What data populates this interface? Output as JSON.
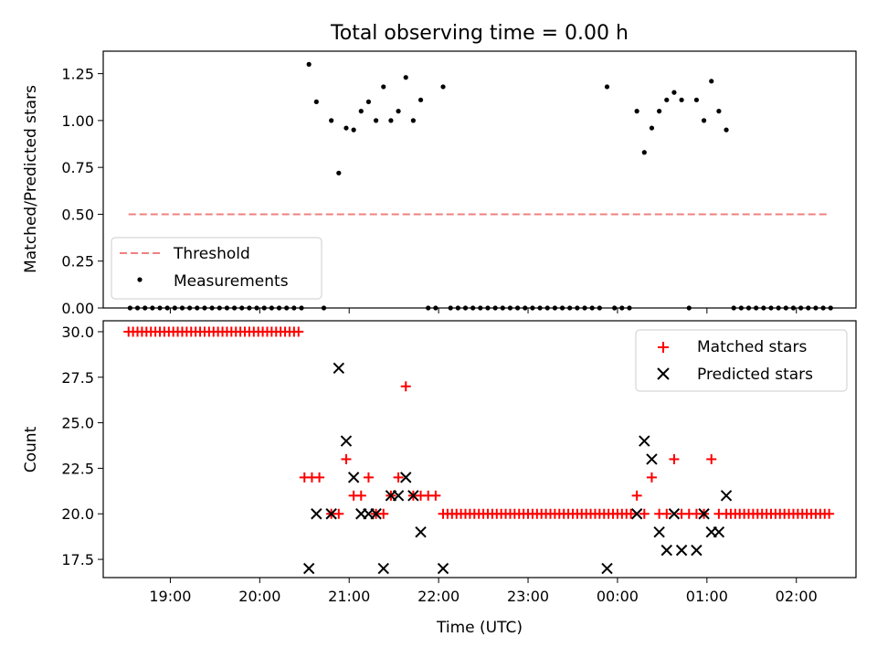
{
  "figure_title": "Total observing time = 0.00 h",
  "xlabel": "Time (UTC)",
  "colors": {
    "threshold": "#f08080",
    "matched": "#ff0000",
    "predicted": "#000000",
    "measurement": "#000000"
  },
  "chart_data": [
    {
      "type": "scatter",
      "title": "Total observing time = 0.00 h",
      "xlabel": "",
      "ylabel": "Matched/Predicted stars",
      "xlim": [
        "18:15",
        "02:40"
      ],
      "ylim": [
        0,
        1.37
      ],
      "yticks": [
        "0.00",
        "0.25",
        "0.50",
        "0.75",
        "1.00",
        "1.25"
      ],
      "grid": false,
      "legend_placement": "lower-left",
      "series": [
        {
          "name": "Threshold",
          "style": "dashed-line",
          "x": [
            "18:32",
            "02:22"
          ],
          "y": [
            0.5,
            0.5
          ]
        },
        {
          "name": "Measurements",
          "style": "dot",
          "points": [
            [
              "18:33",
              0
            ],
            [
              "18:38",
              0
            ],
            [
              "18:43",
              0
            ],
            [
              "18:48",
              0
            ],
            [
              "18:53",
              0
            ],
            [
              "18:58",
              0
            ],
            [
              "19:03",
              0
            ],
            [
              "19:08",
              0
            ],
            [
              "19:13",
              0
            ],
            [
              "19:18",
              0
            ],
            [
              "19:23",
              0
            ],
            [
              "19:28",
              0
            ],
            [
              "19:33",
              0
            ],
            [
              "19:38",
              0
            ],
            [
              "19:43",
              0
            ],
            [
              "19:48",
              0
            ],
            [
              "19:53",
              0
            ],
            [
              "19:58",
              0
            ],
            [
              "20:03",
              0
            ],
            [
              "20:08",
              0
            ],
            [
              "20:13",
              0
            ],
            [
              "20:18",
              0
            ],
            [
              "20:23",
              0
            ],
            [
              "20:28",
              0
            ],
            [
              "20:33",
              1.3
            ],
            [
              "20:38",
              1.1
            ],
            [
              "20:43",
              0
            ],
            [
              "20:48",
              1.0
            ],
            [
              "20:53",
              0.72
            ],
            [
              "20:58",
              0.96
            ],
            [
              "21:03",
              0.95
            ],
            [
              "21:08",
              1.05
            ],
            [
              "21:13",
              1.1
            ],
            [
              "21:18",
              1.0
            ],
            [
              "21:23",
              1.18
            ],
            [
              "21:28",
              1.0
            ],
            [
              "21:33",
              1.05
            ],
            [
              "21:38",
              1.23
            ],
            [
              "21:43",
              1.0
            ],
            [
              "21:48",
              1.11
            ],
            [
              "21:53",
              0
            ],
            [
              "21:58",
              0
            ],
            [
              "22:03",
              1.18
            ],
            [
              "22:08",
              0
            ],
            [
              "22:13",
              0
            ],
            [
              "22:18",
              0
            ],
            [
              "22:23",
              0
            ],
            [
              "22:28",
              0
            ],
            [
              "22:33",
              0
            ],
            [
              "22:38",
              0
            ],
            [
              "22:43",
              0
            ],
            [
              "22:48",
              0
            ],
            [
              "22:53",
              0
            ],
            [
              "22:58",
              0
            ],
            [
              "23:03",
              0
            ],
            [
              "23:08",
              0
            ],
            [
              "23:13",
              0
            ],
            [
              "23:18",
              0
            ],
            [
              "23:23",
              0
            ],
            [
              "23:28",
              0
            ],
            [
              "23:33",
              0
            ],
            [
              "23:38",
              0
            ],
            [
              "23:43",
              0
            ],
            [
              "23:48",
              0
            ],
            [
              "23:53",
              1.18
            ],
            [
              "23:58",
              0
            ],
            [
              "00:03",
              0
            ],
            [
              "00:08",
              0
            ],
            [
              "00:13",
              1.05
            ],
            [
              "00:18",
              0.83
            ],
            [
              "00:23",
              0.96
            ],
            [
              "00:28",
              1.05
            ],
            [
              "00:33",
              1.11
            ],
            [
              "00:38",
              1.15
            ],
            [
              "00:43",
              1.11
            ],
            [
              "00:48",
              0
            ],
            [
              "00:53",
              1.11
            ],
            [
              "00:58",
              1.0
            ],
            [
              "01:03",
              1.21
            ],
            [
              "01:08",
              1.05
            ],
            [
              "01:13",
              0.95
            ],
            [
              "01:18",
              0
            ],
            [
              "01:23",
              0
            ],
            [
              "01:28",
              0
            ],
            [
              "01:33",
              0
            ],
            [
              "01:38",
              0
            ],
            [
              "01:43",
              0
            ],
            [
              "01:48",
              0
            ],
            [
              "01:53",
              0
            ],
            [
              "01:58",
              0
            ],
            [
              "02:03",
              0
            ],
            [
              "02:08",
              0
            ],
            [
              "02:13",
              0
            ],
            [
              "02:18",
              0
            ],
            [
              "02:23",
              0
            ]
          ]
        }
      ]
    },
    {
      "type": "scatter",
      "title": "",
      "xlabel": "Time (UTC)",
      "ylabel": "Count",
      "xlim": [
        "18:15",
        "02:40"
      ],
      "ylim": [
        16.5,
        30.6
      ],
      "yticks": [
        "17.5",
        "20.0",
        "22.5",
        "25.0",
        "27.5",
        "30.0"
      ],
      "xticks": [
        "19:00",
        "20:00",
        "21:00",
        "22:00",
        "23:00",
        "00:00",
        "01:00",
        "02:00"
      ],
      "grid": false,
      "legend_placement": "upper-right",
      "series": [
        {
          "name": "Matched stars",
          "marker": "+",
          "points": [
            [
              "18:32",
              30
            ],
            [
              "18:35",
              30
            ],
            [
              "18:38",
              30
            ],
            [
              "18:41",
              30
            ],
            [
              "18:44",
              30
            ],
            [
              "18:47",
              30
            ],
            [
              "18:50",
              30
            ],
            [
              "18:53",
              30
            ],
            [
              "18:56",
              30
            ],
            [
              "18:59",
              30
            ],
            [
              "19:02",
              30
            ],
            [
              "19:05",
              30
            ],
            [
              "19:08",
              30
            ],
            [
              "19:11",
              30
            ],
            [
              "19:14",
              30
            ],
            [
              "19:17",
              30
            ],
            [
              "19:20",
              30
            ],
            [
              "19:23",
              30
            ],
            [
              "19:26",
              30
            ],
            [
              "19:29",
              30
            ],
            [
              "19:32",
              30
            ],
            [
              "19:35",
              30
            ],
            [
              "19:38",
              30
            ],
            [
              "19:41",
              30
            ],
            [
              "19:44",
              30
            ],
            [
              "19:47",
              30
            ],
            [
              "19:50",
              30
            ],
            [
              "19:53",
              30
            ],
            [
              "19:56",
              30
            ],
            [
              "19:59",
              30
            ],
            [
              "20:02",
              30
            ],
            [
              "20:05",
              30
            ],
            [
              "20:08",
              30
            ],
            [
              "20:11",
              30
            ],
            [
              "20:14",
              30
            ],
            [
              "20:17",
              30
            ],
            [
              "20:20",
              30
            ],
            [
              "20:23",
              30
            ],
            [
              "20:26",
              30
            ],
            [
              "20:30",
              22
            ],
            [
              "20:35",
              22
            ],
            [
              "20:40",
              22
            ],
            [
              "20:48",
              20
            ],
            [
              "20:53",
              20
            ],
            [
              "20:58",
              23
            ],
            [
              "21:03",
              21
            ],
            [
              "21:08",
              21
            ],
            [
              "21:13",
              22
            ],
            [
              "21:18",
              20
            ],
            [
              "21:23",
              20
            ],
            [
              "21:28",
              21
            ],
            [
              "21:33",
              22
            ],
            [
              "21:38",
              27
            ],
            [
              "21:43",
              21
            ],
            [
              "21:48",
              21
            ],
            [
              "21:53",
              21
            ],
            [
              "21:58",
              21
            ],
            [
              "22:03",
              20
            ],
            [
              "22:06",
              20
            ],
            [
              "22:09",
              20
            ],
            [
              "22:12",
              20
            ],
            [
              "22:15",
              20
            ],
            [
              "22:18",
              20
            ],
            [
              "22:21",
              20
            ],
            [
              "22:24",
              20
            ],
            [
              "22:27",
              20
            ],
            [
              "22:30",
              20
            ],
            [
              "22:33",
              20
            ],
            [
              "22:36",
              20
            ],
            [
              "22:39",
              20
            ],
            [
              "22:42",
              20
            ],
            [
              "22:45",
              20
            ],
            [
              "22:48",
              20
            ],
            [
              "22:51",
              20
            ],
            [
              "22:54",
              20
            ],
            [
              "22:57",
              20
            ],
            [
              "23:00",
              20
            ],
            [
              "23:03",
              20
            ],
            [
              "23:06",
              20
            ],
            [
              "23:09",
              20
            ],
            [
              "23:12",
              20
            ],
            [
              "23:15",
              20
            ],
            [
              "23:18",
              20
            ],
            [
              "23:21",
              20
            ],
            [
              "23:24",
              20
            ],
            [
              "23:27",
              20
            ],
            [
              "23:30",
              20
            ],
            [
              "23:33",
              20
            ],
            [
              "23:36",
              20
            ],
            [
              "23:39",
              20
            ],
            [
              "23:42",
              20
            ],
            [
              "23:45",
              20
            ],
            [
              "23:48",
              20
            ],
            [
              "23:51",
              20
            ],
            [
              "23:54",
              20
            ],
            [
              "23:57",
              20
            ],
            [
              "00:00",
              20
            ],
            [
              "00:03",
              20
            ],
            [
              "00:06",
              20
            ],
            [
              "00:09",
              20
            ],
            [
              "00:13",
              21
            ],
            [
              "00:18",
              20
            ],
            [
              "00:23",
              22
            ],
            [
              "00:28",
              20
            ],
            [
              "00:33",
              20
            ],
            [
              "00:38",
              23
            ],
            [
              "00:43",
              20
            ],
            [
              "00:48",
              20
            ],
            [
              "00:53",
              20
            ],
            [
              "00:58",
              20
            ],
            [
              "01:03",
              23
            ],
            [
              "01:08",
              20
            ],
            [
              "01:13",
              20
            ],
            [
              "01:16",
              20
            ],
            [
              "01:19",
              20
            ],
            [
              "01:22",
              20
            ],
            [
              "01:25",
              20
            ],
            [
              "01:28",
              20
            ],
            [
              "01:31",
              20
            ],
            [
              "01:34",
              20
            ],
            [
              "01:37",
              20
            ],
            [
              "01:40",
              20
            ],
            [
              "01:43",
              20
            ],
            [
              "01:46",
              20
            ],
            [
              "01:49",
              20
            ],
            [
              "01:52",
              20
            ],
            [
              "01:55",
              20
            ],
            [
              "01:58",
              20
            ],
            [
              "02:01",
              20
            ],
            [
              "02:04",
              20
            ],
            [
              "02:07",
              20
            ],
            [
              "02:10",
              20
            ],
            [
              "02:13",
              20
            ],
            [
              "02:16",
              20
            ],
            [
              "02:19",
              20
            ],
            [
              "02:22",
              20
            ]
          ]
        },
        {
          "name": "Predicted stars",
          "marker": "x",
          "points": [
            [
              "20:33",
              17
            ],
            [
              "20:38",
              20
            ],
            [
              "20:48",
              20
            ],
            [
              "20:53",
              28
            ],
            [
              "20:58",
              24
            ],
            [
              "21:03",
              22
            ],
            [
              "21:08",
              20
            ],
            [
              "21:13",
              20
            ],
            [
              "21:18",
              20
            ],
            [
              "21:23",
              17
            ],
            [
              "21:28",
              21
            ],
            [
              "21:33",
              21
            ],
            [
              "21:38",
              22
            ],
            [
              "21:43",
              21
            ],
            [
              "21:48",
              19
            ],
            [
              "22:03",
              17
            ],
            [
              "23:53",
              17
            ],
            [
              "00:13",
              20
            ],
            [
              "00:18",
              24
            ],
            [
              "00:23",
              23
            ],
            [
              "00:28",
              19
            ],
            [
              "00:33",
              18
            ],
            [
              "00:38",
              20
            ],
            [
              "00:43",
              18
            ],
            [
              "00:53",
              18
            ],
            [
              "00:58",
              20
            ],
            [
              "01:03",
              19
            ],
            [
              "01:08",
              19
            ],
            [
              "01:13",
              21
            ]
          ]
        }
      ]
    }
  ]
}
